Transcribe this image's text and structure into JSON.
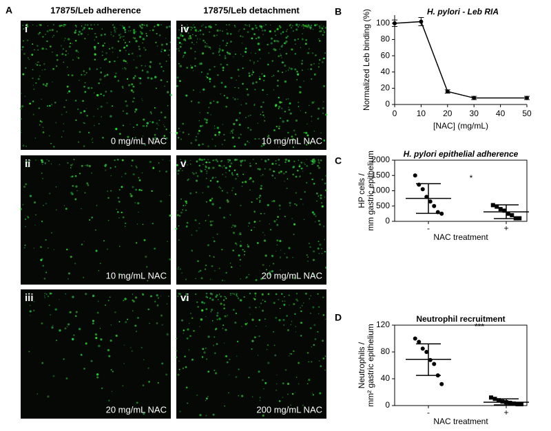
{
  "panel_a": {
    "letter": "A",
    "headers": [
      "17875/Leb adherence",
      "17875/Leb detachment"
    ],
    "images": [
      {
        "label": "i",
        "caption": "0 mg/mL NAC"
      },
      {
        "label": "iv",
        "caption": "10 mg/mL NAC"
      },
      {
        "label": "ii",
        "caption": "10 mg/mL NAC"
      },
      {
        "label": "v",
        "caption": "20 mg/mL NAC"
      },
      {
        "label": "iii",
        "caption": "20 mg/mL NAC"
      },
      {
        "label": "vi",
        "caption": "200 mg/mL NAC"
      }
    ]
  },
  "chart_data": [
    {
      "type": "line",
      "letter": "B",
      "title": "H. pylori - Leb RIA",
      "x": [
        0,
        10,
        20,
        30,
        50
      ],
      "values": [
        100,
        102,
        16,
        8,
        8
      ],
      "errors": [
        4,
        5,
        2,
        2,
        2
      ],
      "xlim": [
        0,
        50
      ],
      "xticks": [
        0,
        10,
        20,
        30,
        40,
        50
      ],
      "ylim": [
        0,
        110
      ],
      "yticks": [
        0,
        20,
        40,
        60,
        80,
        100
      ],
      "xlabel": "[NAC] (mg/mL)",
      "ylabel": [
        "Normalized Leb binding (%)"
      ],
      "color": "#000000"
    },
    {
      "type": "dot",
      "letter": "C",
      "title": "H. pylori epithelial adherence",
      "categories": [
        "-",
        "+"
      ],
      "points": [
        [
          1500,
          1200,
          1050,
          800,
          650,
          500,
          300,
          250
        ],
        [
          530,
          480,
          400,
          350,
          250,
          200,
          100,
          100
        ]
      ],
      "means": [
        750,
        310
      ],
      "error_upper": [
        1230,
        540
      ],
      "error_lower": [
        260,
        90
      ],
      "ylim": [
        0,
        2000
      ],
      "yticks": [
        0,
        500,
        1000,
        1500,
        2000
      ],
      "xlabel": "NAC treatment",
      "ylabel": [
        "HP cells /",
        "mm gastric epithelium"
      ],
      "annotation": "*",
      "color": "#000000"
    },
    {
      "type": "dot",
      "letter": "D",
      "title": "Neutrophil recruitment",
      "categories": [
        "-",
        "+"
      ],
      "points": [
        [
          100,
          95,
          85,
          80,
          68,
          62,
          45,
          32
        ],
        [
          12,
          10,
          8,
          6,
          5,
          4,
          3,
          2,
          2
        ]
      ],
      "means": [
        69,
        5
      ],
      "error_upper": [
        92,
        10
      ],
      "error_lower": [
        45,
        1
      ],
      "ylim": [
        0,
        120
      ],
      "yticks": [
        0,
        40,
        80,
        120
      ],
      "xlabel": "NAC treatment",
      "ylabel": [
        "Neutrophils /",
        "mm² gastric epithelium"
      ],
      "annotation": "***",
      "color": "#000000"
    }
  ]
}
